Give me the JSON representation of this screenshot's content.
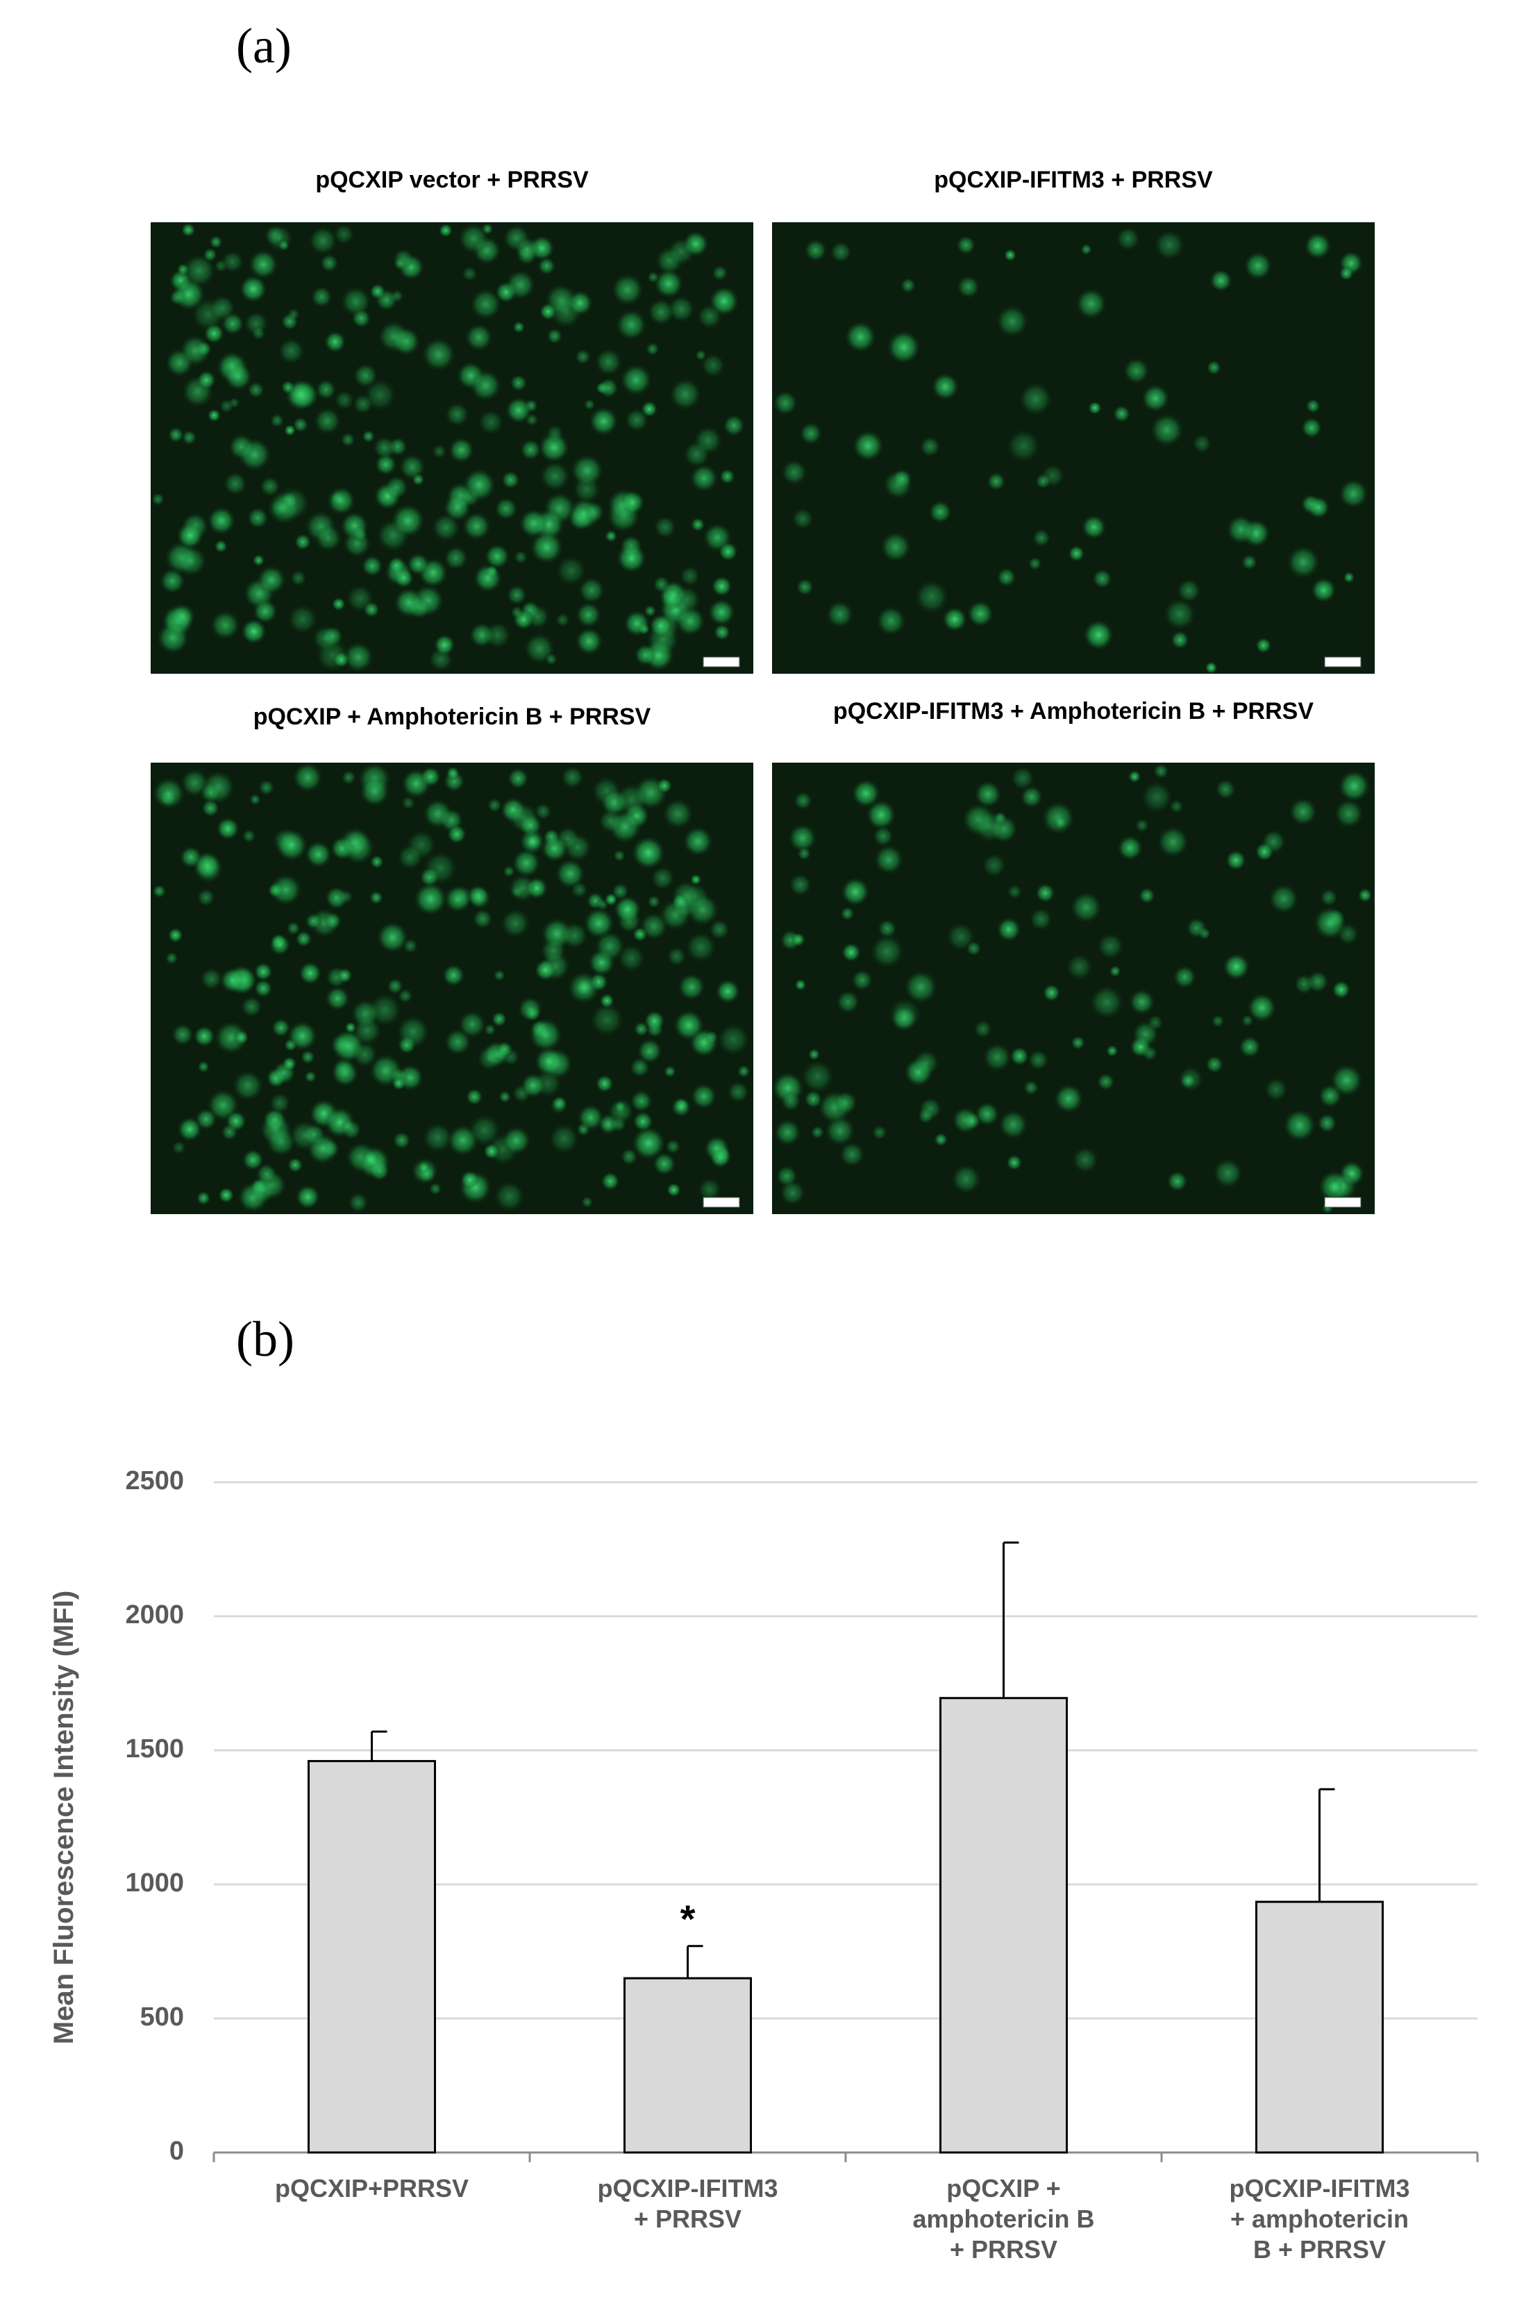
{
  "panel_a": {
    "label": "(a)",
    "images": [
      {
        "title": "pQCXIP vector + PRRSV"
      },
      {
        "title": "pQCXIP-IFITM3 + PRRSV"
      },
      {
        "title": "pQCXIP + Amphotericin B + PRRSV"
      },
      {
        "title": "pQCXIP-IFITM3 + Amphotericin B + PRRSV"
      }
    ]
  },
  "panel_b_label": "(b)",
  "chart_data": {
    "type": "bar",
    "y_label": "Mean Fluorescence Intensity (MFI)",
    "categories": [
      "pQCXIP+PRRSV",
      "pQCXIP-IFITM3 + PRRSV",
      "pQCXIP + amphotericin B + PRRSV",
      "pQCXIP-IFITM3 + amphotericin B + PRRSV"
    ],
    "values": [
      1460,
      650,
      1695,
      935
    ],
    "errors": [
      110,
      120,
      580,
      420
    ],
    "color": "#d9d9d9",
    "ylim": [
      0,
      2500
    ],
    "yticks": [
      0,
      500,
      1000,
      1500,
      2000,
      2500
    ],
    "grid": true,
    "annotations": [
      {
        "text": "*",
        "category": "pQCXIP-IFITM3 + PRRSV"
      }
    ]
  }
}
